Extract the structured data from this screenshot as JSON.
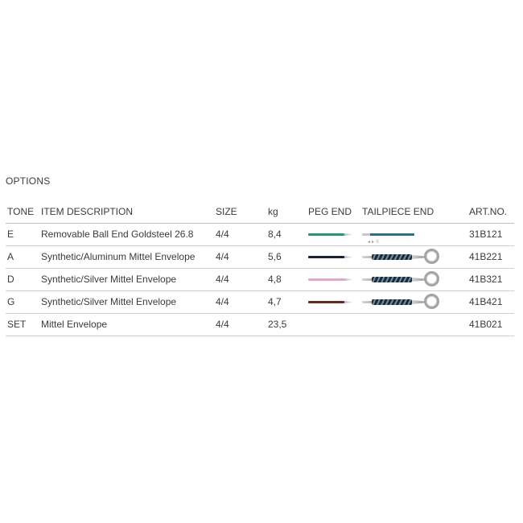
{
  "section_title": "OPTIONS",
  "columns": {
    "tone": "TONE",
    "description": "ITEM DESCRIPTION",
    "size": "SIZE",
    "kg": "kg",
    "peg_end": "PEG END",
    "tailpiece_end": "TAILPIECE END",
    "art_no": "ART.NO."
  },
  "rows": [
    {
      "tone": "E",
      "description": "Removable Ball End Goldsteel 26.8",
      "size": "4/4",
      "kg": "8,4",
      "peg_color": "#1f9a75",
      "tail_type": "ball",
      "tail_color": "#2a6f8c",
      "tail_label": "◄► ©",
      "art_no": "31B121"
    },
    {
      "tone": "A",
      "description": "Synthetic/Aluminum Mittel Envelope",
      "size": "4/4",
      "kg": "5,6",
      "peg_color": "#16203a",
      "tail_type": "loop",
      "art_no": "41B221"
    },
    {
      "tone": "D",
      "description": "Synthetic/Silver Mittel Envelope",
      "size": "4/4",
      "kg": "4,8",
      "peg_color": "#e7a2cf",
      "tail_type": "loop",
      "art_no": "41B321"
    },
    {
      "tone": "G",
      "description": "Synthetic/Silver Mittel Envelope",
      "size": "4/4",
      "kg": "4,7",
      "peg_color": "#6a2b1d",
      "tail_type": "loop",
      "art_no": "41B421"
    },
    {
      "tone": "SET",
      "description": "Mittel Envelope",
      "size": "4/4",
      "kg": "23,5",
      "peg_color": null,
      "tail_type": null,
      "art_no": "41B021"
    }
  ]
}
